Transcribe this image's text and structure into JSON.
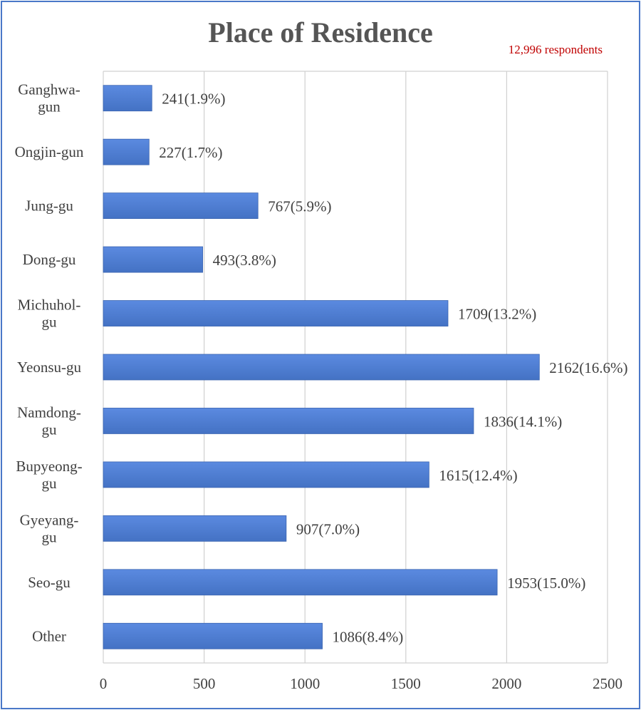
{
  "chart_data": {
    "type": "bar",
    "orientation": "horizontal",
    "title": "Place of Residence",
    "subtitle": "12,996 respondents",
    "categories": [
      "Ganghwa-gun",
      "Ongjin-gun",
      "Jung-gu",
      "Dong-gu",
      "Michuhol-gu",
      "Yeonsu-gu",
      "Namdong-gu",
      "Bupyeong-gu",
      "Gyeyang-gu",
      "Seo-gu",
      "Other"
    ],
    "category_lines": [
      [
        "Ganghwa-",
        "gun"
      ],
      [
        "Ongjin-gun"
      ],
      [
        "Jung-gu"
      ],
      [
        "Dong-gu"
      ],
      [
        "Michuhol-",
        "gu"
      ],
      [
        "Yeonsu-gu"
      ],
      [
        "Namdong-",
        "gu"
      ],
      [
        "Bupyeong-",
        "gu"
      ],
      [
        "Gyeyang-",
        "gu"
      ],
      [
        "Seo-gu"
      ],
      [
        "Other"
      ]
    ],
    "values": [
      241,
      227,
      767,
      493,
      1709,
      2162,
      1836,
      1615,
      907,
      1953,
      1086
    ],
    "data_labels": [
      "241(1.9%)",
      "227(1.7%)",
      "767(5.9%)",
      "493(3.8%)",
      "1709(13.2%)",
      "2162(16.6%)",
      "1836(14.1%)",
      "1615(12.4%)",
      "907(7.0%)",
      "1953(15.0%)",
      "1086(8.4%)"
    ],
    "xlim": [
      0,
      2500
    ],
    "xticks": [
      "0",
      "500",
      "1000",
      "1500",
      "2000",
      "2500"
    ],
    "grid": true,
    "bar_color": "#4472c4",
    "bar_color_light": "#5b8ae0",
    "grid_color": "#d0d0d0"
  }
}
